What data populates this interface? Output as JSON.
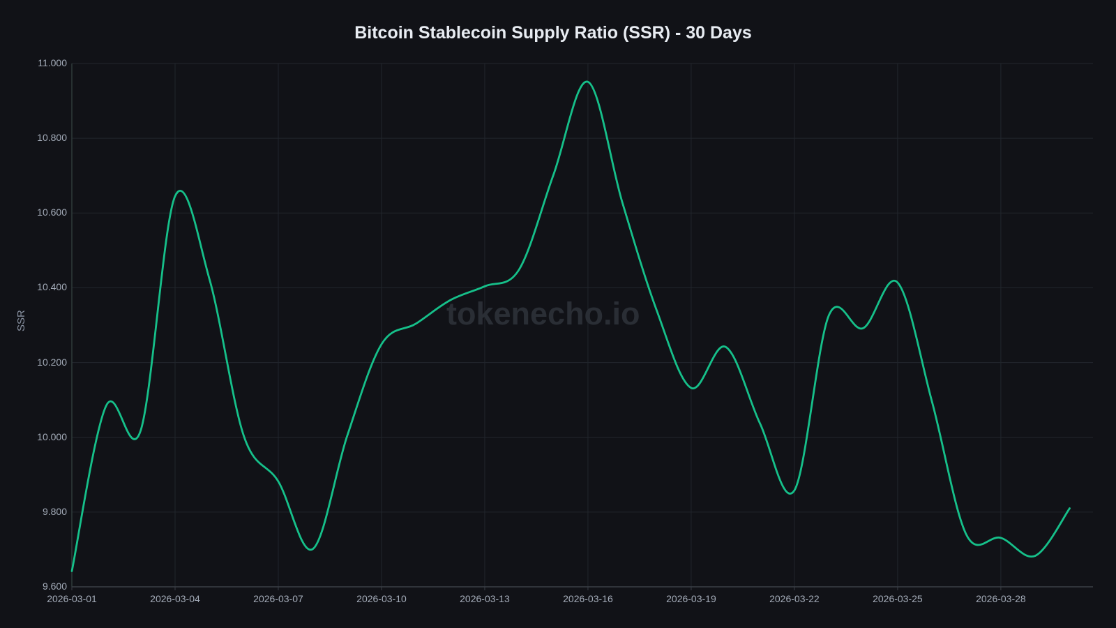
{
  "chart_data": {
    "type": "line",
    "title": "Bitcoin Stablecoin Supply Ratio (SSR) - 30 Days",
    "xlabel": "",
    "ylabel": "SSR",
    "ylim": [
      9.6,
      11.0
    ],
    "grid": true,
    "legend": null,
    "watermark": "tokenecho.io",
    "line_color": "#16c08a",
    "y_ticks": [
      "9.600",
      "9.800",
      "10.000",
      "10.200",
      "10.400",
      "10.600",
      "10.800",
      "11.000"
    ],
    "x_ticks": [
      "2026-03-01",
      "2026-03-04",
      "2026-03-07",
      "2026-03-10",
      "2026-03-13",
      "2026-03-16",
      "2026-03-19",
      "2026-03-22",
      "2026-03-25",
      "2026-03-28"
    ],
    "x": [
      "2026-03-01",
      "2026-03-02",
      "2026-03-03",
      "2026-03-04",
      "2026-03-05",
      "2026-03-06",
      "2026-03-07",
      "2026-03-08",
      "2026-03-09",
      "2026-03-10",
      "2026-03-11",
      "2026-03-12",
      "2026-03-13",
      "2026-03-14",
      "2026-03-15",
      "2026-03-16",
      "2026-03-17",
      "2026-03-18",
      "2026-03-19",
      "2026-03-20",
      "2026-03-21",
      "2026-03-22",
      "2026-03-23",
      "2026-03-24",
      "2026-03-25",
      "2026-03-26",
      "2026-03-27",
      "2026-03-28",
      "2026-03-29",
      "2026-03-30"
    ],
    "series": [
      {
        "name": "SSR",
        "values": [
          9.642,
          10.085,
          10.018,
          10.645,
          10.423,
          10.003,
          9.882,
          9.701,
          10.003,
          10.249,
          10.304,
          10.367,
          10.404,
          10.449,
          10.703,
          10.951,
          10.628,
          10.339,
          10.132,
          10.242,
          10.037,
          9.858,
          10.326,
          10.292,
          10.414,
          10.095,
          9.739,
          9.731,
          9.683,
          9.81
        ]
      }
    ]
  }
}
